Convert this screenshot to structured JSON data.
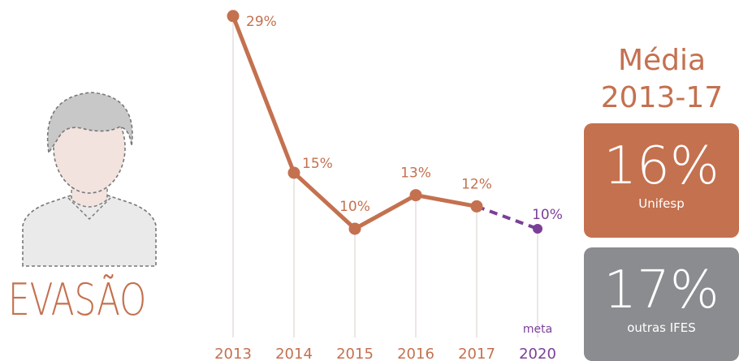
{
  "left_label": "EVASÃO",
  "summary": {
    "title_line1": "Média",
    "title_line2": "2013-17",
    "unifesp": {
      "value": "16%",
      "label": "Unifesp"
    },
    "ifes": {
      "value": "17%",
      "label": "outras IFES"
    }
  },
  "colors": {
    "accent": "#c4714f",
    "goal": "#7b3f98",
    "gray_box": "#8a8c8f",
    "guide": "#d9cfcb"
  },
  "chart_data": {
    "type": "line",
    "categories": [
      "2013",
      "2014",
      "2015",
      "2016",
      "2017",
      "2020"
    ],
    "values": [
      29,
      15,
      10,
      13,
      12,
      10
    ],
    "data_labels": [
      "29%",
      "15%",
      "10%",
      "13%",
      "12%",
      "10%"
    ],
    "goal": {
      "category_index": 5,
      "top_label": "meta"
    },
    "unit": "%"
  }
}
